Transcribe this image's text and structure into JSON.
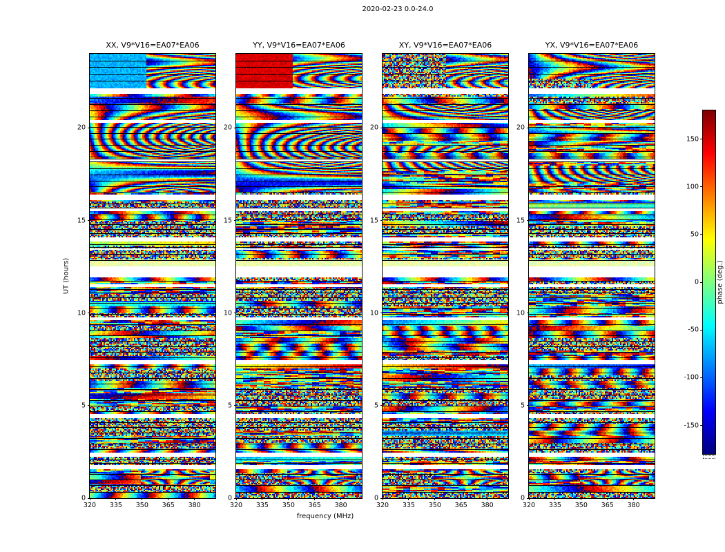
{
  "figure_title": "2020-02-23 0.0-24.0",
  "chart_data": {
    "type": "heatmap",
    "title": "2020-02-23 0.0-24.0",
    "xlabel": "frequency (MHz)",
    "ylabel": "UT (hours)",
    "xlim": [
      320,
      392
    ],
    "ylim": [
      0,
      24
    ],
    "x_ticks": [
      320,
      335,
      350,
      365,
      380
    ],
    "y_ticks": [
      0,
      5,
      10,
      15,
      20
    ],
    "panels": [
      {
        "pol": "XX",
        "title": "XX, V9*V16=EA07*EA06"
      },
      {
        "pol": "YY",
        "title": "YY, V9*V16=EA07*EA06"
      },
      {
        "pol": "XY",
        "title": "XY, V9*V16=EA07*EA06"
      },
      {
        "pol": "YX",
        "title": "YX, V9*V16=EA07*EA06"
      }
    ],
    "colorbar": {
      "label": "phase (deg.)",
      "ticks": [
        150,
        100,
        50,
        0,
        -50,
        -100,
        -150
      ],
      "vmin": -180,
      "vmax": 180,
      "colormap": "jet"
    },
    "description": "Visibility phase vs frequency (320-392 MHz) and UT (0-24 h) for baseline V9*V16=EA07*EA06 in four polarization products. Mostly random phase speckle with coherent fringe regions: wavy fringes ~17-21.3 h, a coherent band 22.1-24 h (cyan patch in XX, red patch in YY at 320-352 MHz with fringe arcs above 352 MHz), and a fringe blob near 1 h at 350-385 MHz. White horizontal bands are data gaps; thin black lines are scan boundaries.",
    "gaps_hours": [
      [
        21.82,
        22.14
      ],
      [
        20.28,
        20.4
      ],
      [
        18.21,
        18.31
      ],
      [
        16.13,
        16.42
      ],
      [
        15.52,
        15.63
      ],
      [
        13.85,
        14.07
      ],
      [
        13.38,
        13.48
      ],
      [
        11.95,
        12.55
      ],
      [
        11.42,
        11.58
      ],
      [
        9.58,
        9.78
      ],
      [
        7.25,
        7.44
      ],
      [
        4.3,
        4.54
      ],
      [
        2.27,
        2.46
      ],
      [
        1.54,
        1.76
      ]
    ],
    "scan_lines_hours": [
      23.62,
      23.28,
      22.92,
      22.55,
      21.62,
      21.28,
      20.95,
      20.62,
      20.05,
      19.72,
      19.4,
      19.08,
      18.76,
      18.44,
      18.35,
      18.17,
      17.8,
      17.48,
      17.16,
      16.84,
      16.55,
      15.9,
      15.7,
      15.3,
      15.05,
      14.8,
      14.55,
      14.3,
      13.7,
      13.55,
      13.2,
      12.85,
      11.75,
      11.3,
      11.12,
      10.85,
      10.55,
      10.25,
      9.95,
      9.4,
      9.1,
      8.8,
      8.5,
      8.2,
      7.9,
      7.6,
      7.1,
      6.8,
      6.5,
      6.2,
      5.9,
      5.6,
      5.3,
      5.0,
      4.7,
      4.1,
      3.85,
      3.55,
      3.25,
      2.95,
      2.65,
      2.1,
      1.9,
      1.3,
      1.0,
      0.7,
      0.35
    ],
    "features": {
      "top_coherent_band_hours": [
        22.14,
        24
      ],
      "wavy_fringe_band_hours": [
        16.55,
        21.35
      ],
      "bottom_fringe_blob_hours": [
        0.72,
        1.52
      ],
      "pale_band_hours": [
        12.55,
        12.92
      ]
    }
  },
  "layout_colors": {
    "background": "#ffffff",
    "axes": "#000000"
  }
}
